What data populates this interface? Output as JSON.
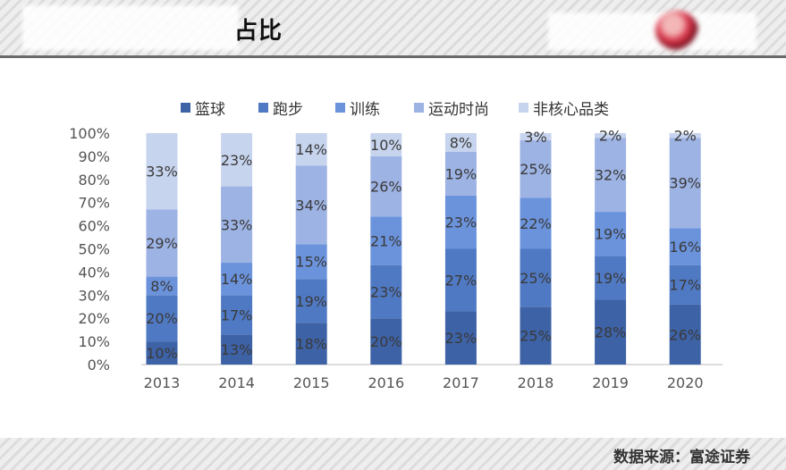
{
  "header": {
    "title": "占比"
  },
  "footer": {
    "source": "数据来源：富途证券"
  },
  "colors": {
    "篮球": "#3d62a6",
    "跑步": "#5079c3",
    "训练": "#6b93dc",
    "运动时尚": "#9db3e4",
    "非核心品类": "#c7d4ee"
  },
  "chart_data": {
    "type": "bar",
    "stacked": true,
    "percent": true,
    "categories": [
      "2013",
      "2014",
      "2015",
      "2016",
      "2017",
      "2018",
      "2019",
      "2020"
    ],
    "series": [
      {
        "name": "篮球",
        "values": [
          10,
          13,
          18,
          20,
          23,
          25,
          28,
          26
        ]
      },
      {
        "name": "跑步",
        "values": [
          20,
          17,
          19,
          23,
          27,
          25,
          19,
          17
        ]
      },
      {
        "name": "训练",
        "values": [
          8,
          14,
          15,
          21,
          23,
          22,
          19,
          16
        ]
      },
      {
        "name": "运动时尚",
        "values": [
          29,
          33,
          34,
          26,
          19,
          25,
          32,
          39
        ]
      },
      {
        "name": "非核心品类",
        "values": [
          33,
          23,
          14,
          10,
          8,
          3,
          2,
          2
        ]
      }
    ],
    "ylim": [
      0,
      100
    ],
    "yticks": [
      "0%",
      "10%",
      "20%",
      "30%",
      "40%",
      "50%",
      "60%",
      "70%",
      "80%",
      "90%",
      "100%"
    ],
    "legend_position": "top",
    "grid": false
  }
}
